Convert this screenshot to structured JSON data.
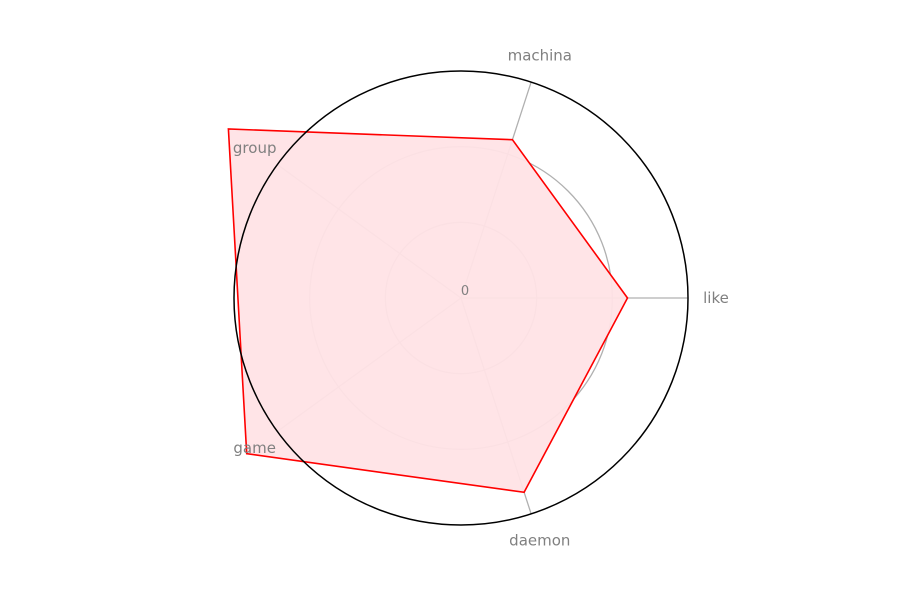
{
  "chart_data": {
    "type": "radar",
    "categories": [
      "like",
      "machina",
      "group",
      "game",
      "daemon"
    ],
    "series": [
      {
        "values": [
          2.2,
          2.2,
          3.8,
          3.5,
          2.7
        ]
      }
    ],
    "radial_ticks": [
      1,
      2
    ],
    "origin_tick_label": "0",
    "rmax": 3,
    "colors": {
      "line": "#ff0000",
      "fill": "#ffe3e6",
      "grid": "#b0b0b0",
      "outline": "#000000",
      "label": "#808080"
    }
  }
}
